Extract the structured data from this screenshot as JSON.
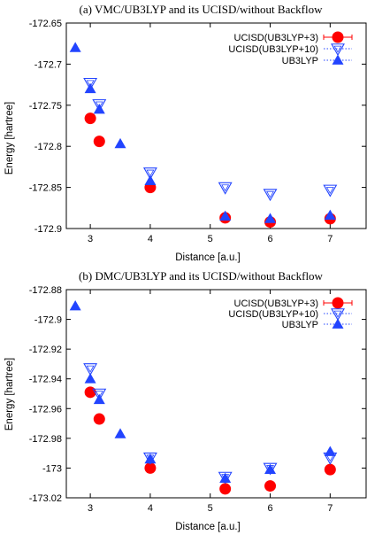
{
  "chart_data": [
    {
      "type": "scatter",
      "title": "(a)  VMC/UB3LYP and its UCISD/without Backflow",
      "xlabel": "Distance [a.u.]",
      "ylabel": "Energy [hartree]",
      "xlim": [
        2.6,
        7.6
      ],
      "ylim": [
        -172.9,
        -172.65
      ],
      "xticks": [
        "3",
        "4",
        "5",
        "6",
        "7"
      ],
      "yticks": [
        "-172.65",
        "-172.7",
        "-172.75",
        "-172.8",
        "-172.85",
        "-172.9"
      ],
      "grid": false,
      "legend": "top-right",
      "series": [
        {
          "name": "UCISD(UB3LYP+3)",
          "marker": "circle",
          "color": "#ff0000",
          "x": [
            3.0,
            3.15,
            4.0,
            5.25,
            6.0,
            7.0
          ],
          "y": [
            -172.766,
            -172.794,
            -172.85,
            -172.887,
            -172.892,
            -172.888
          ]
        },
        {
          "name": "UCISD(UB3LYP+10)",
          "marker": "triangle-down-open",
          "color": "#2244ff",
          "x": [
            3.0,
            3.15,
            4.0,
            5.25,
            6.0,
            7.0
          ],
          "y": [
            -172.723,
            -172.749,
            -172.832,
            -172.85,
            -172.858,
            -172.853
          ]
        },
        {
          "name": "UB3LYP",
          "marker": "triangle-up",
          "color": "#2244ff",
          "x": [
            2.75,
            3.0,
            3.15,
            3.5,
            4.0,
            5.25,
            6.0,
            7.0
          ],
          "y": [
            -172.68,
            -172.73,
            -172.755,
            -172.797,
            -172.842,
            -172.885,
            -172.888,
            -172.884
          ]
        }
      ]
    },
    {
      "type": "scatter",
      "title": "(b)  DMC/UB3LYP and its UCISD/without Backflow",
      "xlabel": "Distance [a.u.]",
      "ylabel": "Energy [hartree]",
      "xlim": [
        2.6,
        7.6
      ],
      "ylim": [
        -173.02,
        -172.88
      ],
      "xticks": [
        "3",
        "4",
        "5",
        "6",
        "7"
      ],
      "yticks": [
        "-172.88",
        "-172.9",
        "-172.92",
        "-172.94",
        "-172.96",
        "-172.98",
        "-173",
        "-173.02"
      ],
      "grid": false,
      "legend": "top-right",
      "series": [
        {
          "name": "UCISD(UB3LYP+3)",
          "marker": "circle",
          "color": "#ff0000",
          "x": [
            3.0,
            3.15,
            4.0,
            5.25,
            6.0,
            7.0
          ],
          "y": [
            -172.949,
            -172.967,
            -173.0,
            -173.014,
            -173.012,
            -173.001
          ]
        },
        {
          "name": "UCISD(UB3LYP+10)",
          "marker": "triangle-down-open",
          "color": "#2244ff",
          "x": [
            3.0,
            3.15,
            4.0,
            5.25,
            6.0,
            7.0
          ],
          "y": [
            -172.933,
            -172.95,
            -172.993,
            -173.006,
            -173.0,
            -172.993
          ]
        },
        {
          "name": "UB3LYP",
          "marker": "triangle-up",
          "color": "#2244ff",
          "x": [
            2.75,
            3.0,
            3.15,
            3.5,
            4.0,
            5.25,
            6.0,
            7.0
          ],
          "y": [
            -172.891,
            -172.94,
            -172.954,
            -172.977,
            -172.994,
            -173.007,
            -173.001,
            -172.989
          ]
        }
      ]
    }
  ]
}
